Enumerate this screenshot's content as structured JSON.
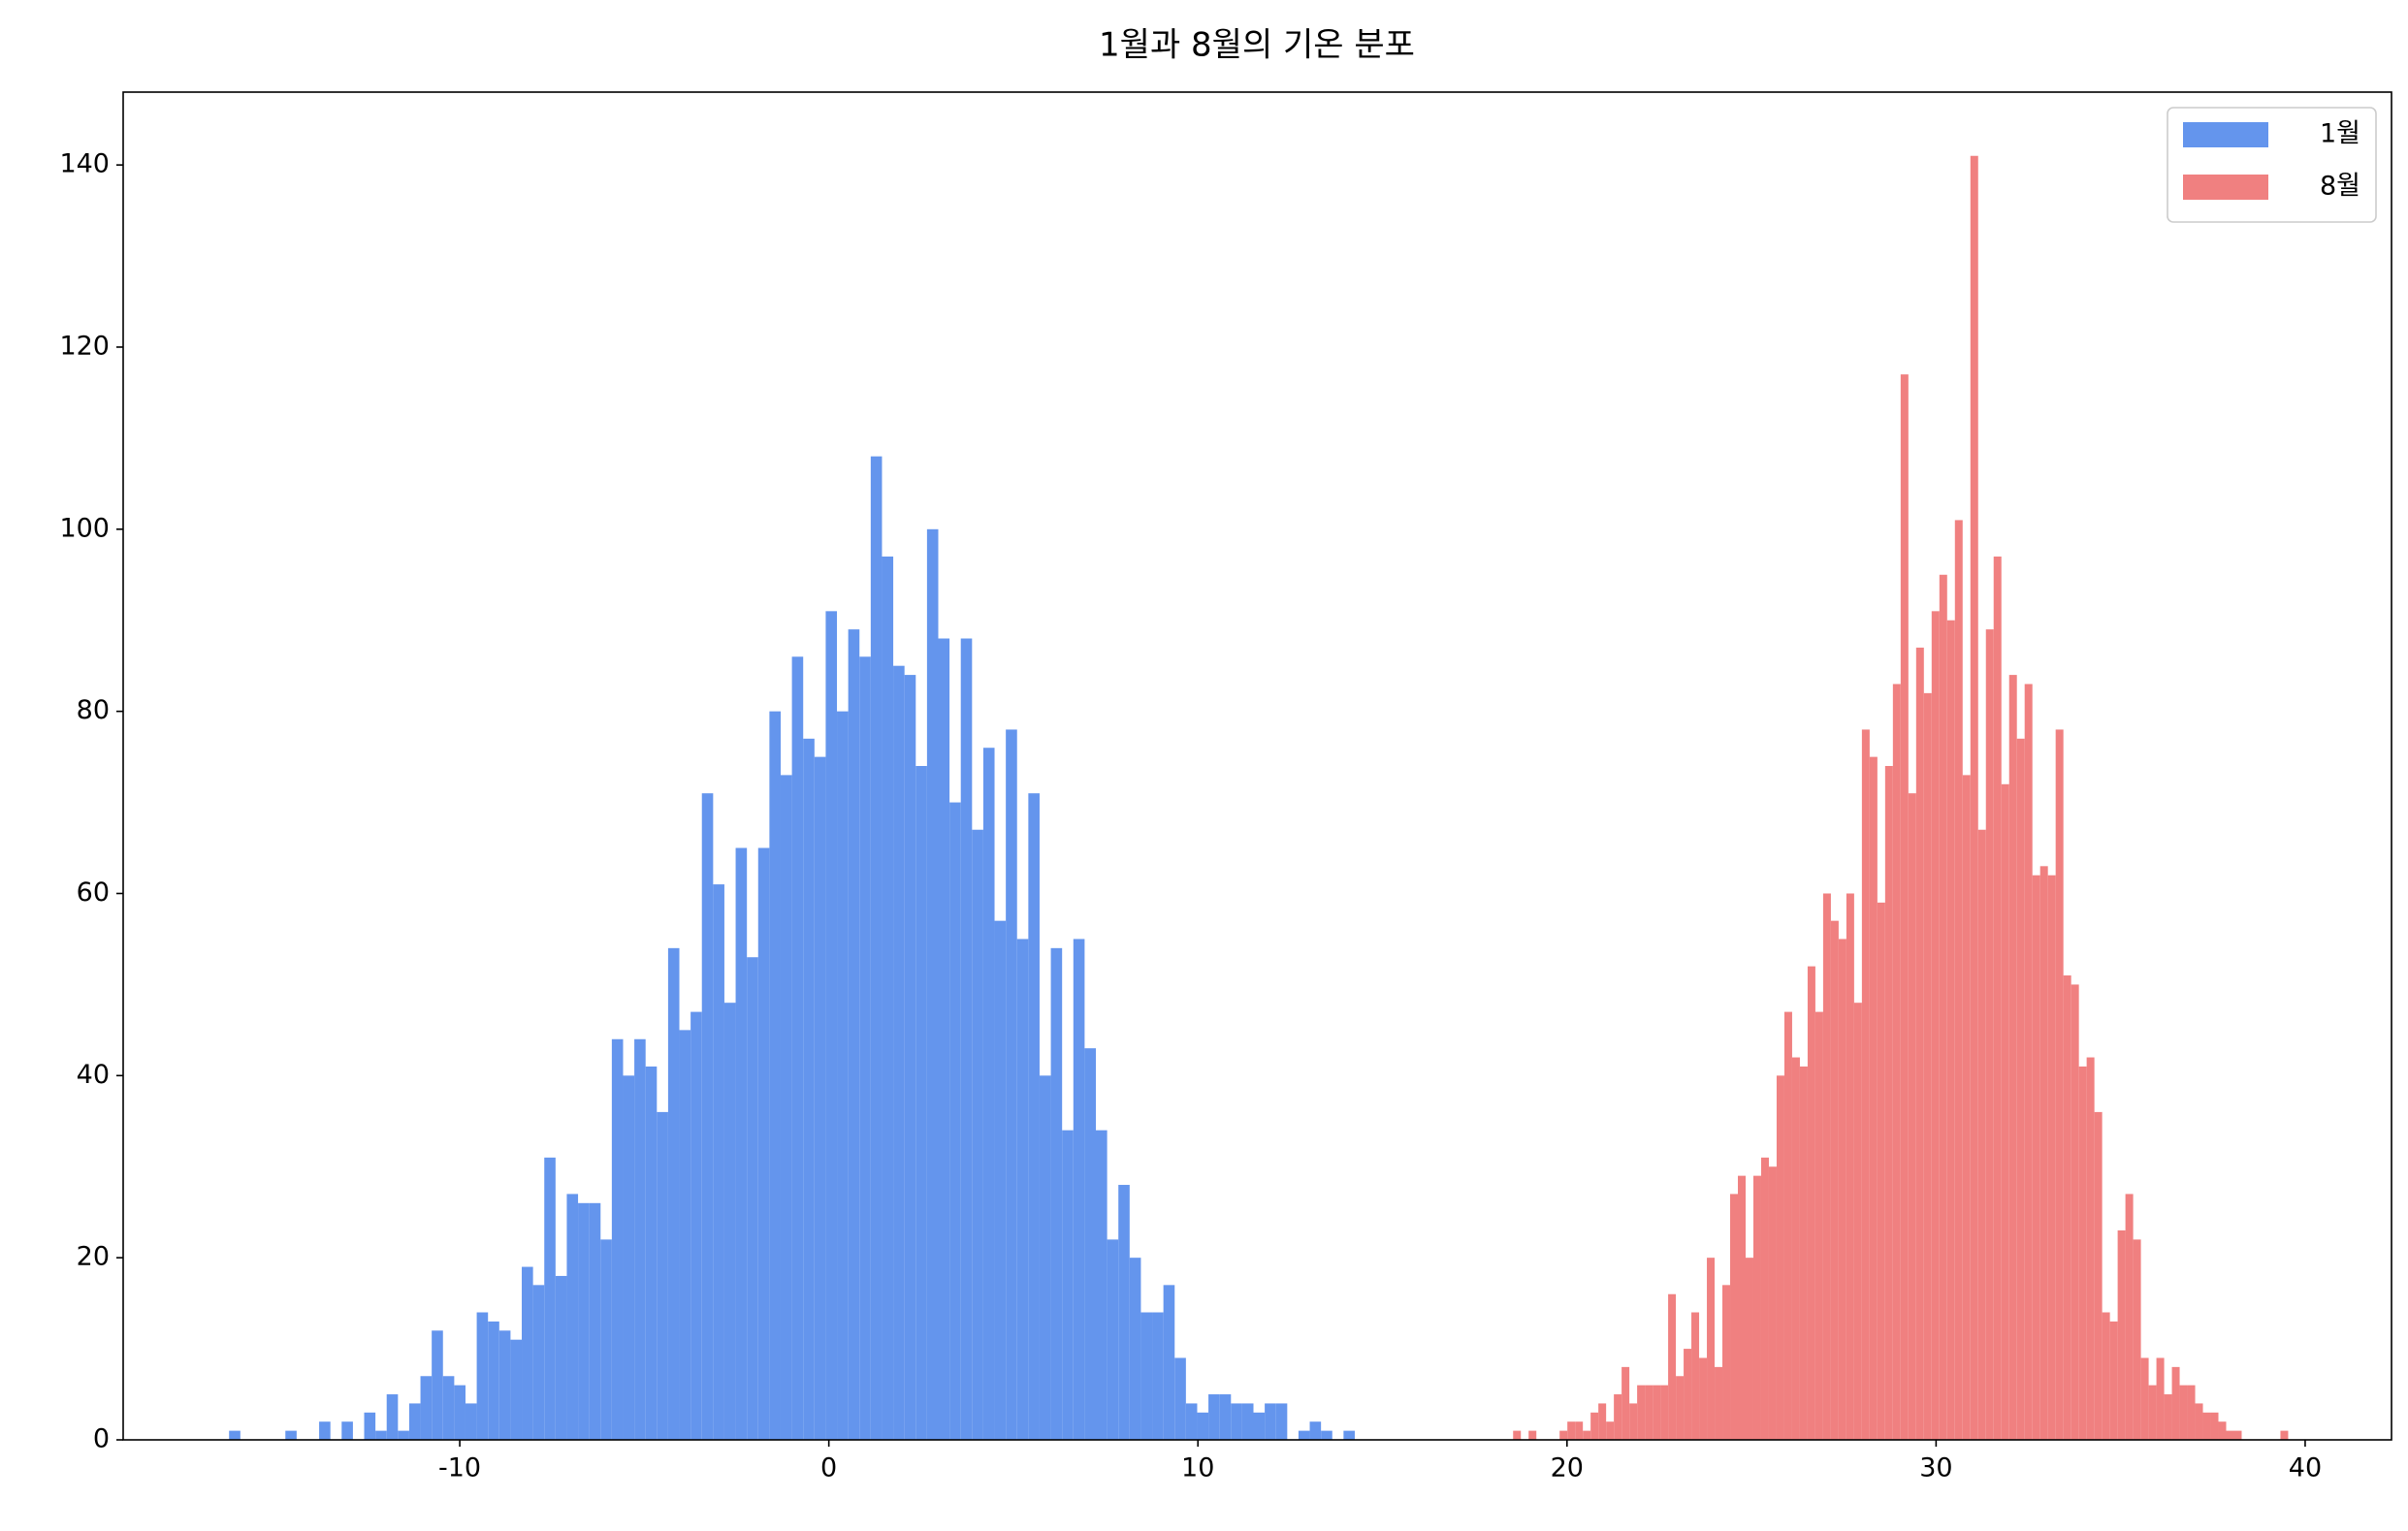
{
  "chart_data": {
    "type": "histogram",
    "title": "1월과 8월의 기온 분포",
    "series": [
      {
        "name": "1월",
        "color": "#6495ed",
        "bins": [
          -16.25,
          -15.945,
          -15.64,
          -15.335,
          -15.03,
          -14.725,
          -14.42,
          -14.115,
          -13.81,
          -13.505,
          -13.2,
          -12.895,
          -12.59,
          -12.285,
          -11.98,
          -11.675,
          -11.37,
          -11.065,
          -10.76,
          -10.455,
          -10.15,
          -9.845,
          -9.54,
          -9.235,
          -8.93,
          -8.625,
          -8.32,
          -8.015,
          -7.71,
          -7.405,
          -7.1,
          -6.795,
          -6.49,
          -6.185,
          -5.88,
          -5.575,
          -5.27,
          -4.965,
          -4.66,
          -4.355,
          -4.05,
          -3.745,
          -3.44,
          -3.135,
          -2.83,
          -2.525,
          -2.22,
          -1.915,
          -1.61,
          -1.305,
          -1.0,
          -0.695,
          -0.39,
          -0.085,
          0.22,
          0.525,
          0.83,
          1.135,
          1.44,
          1.745,
          2.05,
          2.355,
          2.66,
          2.965,
          3.27,
          3.575,
          3.88,
          4.185,
          4.49,
          4.795,
          5.1,
          5.405,
          5.71,
          6.015,
          6.32,
          6.625,
          6.93,
          7.235,
          7.54,
          7.845,
          8.15,
          8.455,
          8.76,
          9.065,
          9.37,
          9.675,
          9.98,
          10.285,
          10.59,
          10.895,
          11.2,
          11.505,
          11.81,
          12.115,
          12.42,
          12.725,
          13.03,
          13.335,
          13.64,
          13.945,
          14.25
        ],
        "values": [
          1,
          0,
          0,
          0,
          0,
          1,
          0,
          0,
          2,
          0,
          2,
          0,
          3,
          1,
          5,
          1,
          4,
          7,
          12,
          7,
          6,
          4,
          14,
          13,
          12,
          11,
          19,
          17,
          31,
          18,
          27,
          26,
          26,
          22,
          44,
          40,
          44,
          41,
          36,
          54,
          45,
          47,
          71,
          61,
          48,
          65,
          53,
          65,
          80,
          73,
          86,
          77,
          75,
          91,
          80,
          89,
          86,
          108,
          97,
          85,
          84,
          74,
          100,
          88,
          70,
          88,
          67,
          76,
          57,
          78,
          55,
          71,
          40,
          54,
          34,
          55,
          43,
          34,
          22,
          28,
          20,
          14,
          14,
          17,
          9,
          4,
          3,
          5,
          5,
          4,
          4,
          3,
          4,
          4,
          0,
          1,
          2,
          1,
          0,
          1
        ]
      },
      {
        "name": "8월",
        "color": "#f08080",
        "bins": [
          18.54,
          18.75,
          18.96,
          19.17,
          19.38,
          19.59,
          19.8,
          20.01,
          20.22,
          20.43,
          20.64,
          20.85,
          21.06,
          21.27,
          21.48,
          21.69,
          21.9,
          22.11,
          22.32,
          22.53,
          22.74,
          22.95,
          23.16,
          23.37,
          23.58,
          23.79,
          24.0,
          24.21,
          24.42,
          24.63,
          24.84,
          25.05,
          25.26,
          25.47,
          25.68,
          25.89,
          26.1,
          26.31,
          26.52,
          26.73,
          26.94,
          27.15,
          27.36,
          27.57,
          27.78,
          27.99,
          28.2,
          28.41,
          28.62,
          28.83,
          29.04,
          29.25,
          29.46,
          29.67,
          29.88,
          30.09,
          30.3,
          30.51,
          30.72,
          30.93,
          31.14,
          31.35,
          31.56,
          31.77,
          31.98,
          32.19,
          32.4,
          32.61,
          32.82,
          33.03,
          33.24,
          33.45,
          33.66,
          33.87,
          34.08,
          34.29,
          34.5,
          34.71,
          34.92,
          35.13,
          35.34,
          35.55,
          35.76,
          35.97,
          36.18,
          36.39,
          36.6,
          36.81,
          37.02,
          37.23,
          37.44,
          37.65,
          37.86,
          38.07,
          38.28,
          38.49,
          38.7,
          38.91,
          39.12,
          39.33,
          39.54
        ],
        "values": [
          1,
          0,
          1,
          0,
          0,
          0,
          1,
          2,
          2,
          1,
          3,
          4,
          2,
          5,
          8,
          4,
          6,
          6,
          6,
          6,
          16,
          7,
          10,
          14,
          9,
          20,
          8,
          17,
          27,
          29,
          20,
          29,
          31,
          30,
          40,
          47,
          42,
          41,
          52,
          47,
          60,
          57,
          55,
          60,
          48,
          78,
          75,
          59,
          74,
          83,
          117,
          71,
          87,
          82,
          91,
          95,
          90,
          101,
          73,
          141,
          67,
          89,
          97,
          72,
          84,
          77,
          83,
          62,
          63,
          62,
          78,
          51,
          50,
          41,
          42,
          36,
          14,
          13,
          23,
          27,
          22,
          9,
          6,
          9,
          5,
          8,
          6,
          6,
          4,
          3,
          3,
          2,
          1,
          1,
          0,
          0,
          0,
          0,
          0,
          1
        ]
      }
    ],
    "xlim": [
      -19.12,
      42.34
    ],
    "ylim": [
      0,
      148
    ],
    "xticks": [
      -10,
      0,
      10,
      20,
      30,
      40
    ],
    "yticks": [
      0,
      20,
      40,
      60,
      80,
      100,
      120,
      140
    ],
    "legend": "upper right"
  }
}
